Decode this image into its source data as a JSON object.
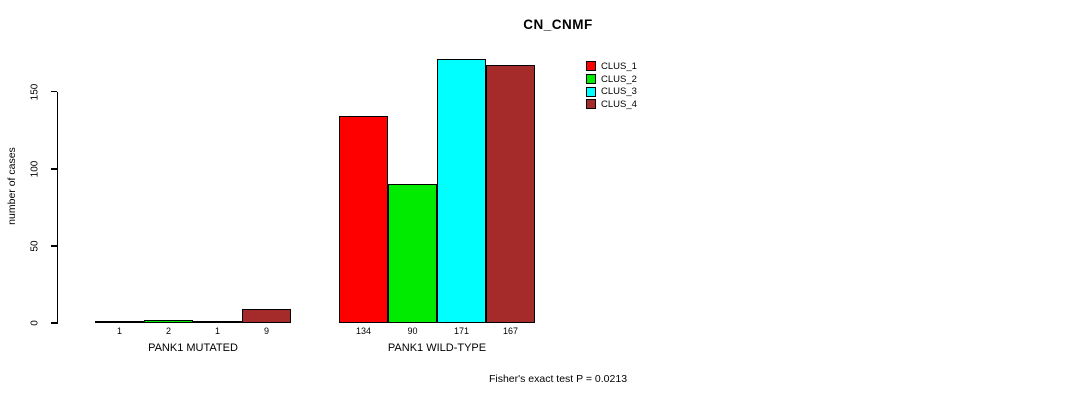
{
  "chart_data": {
    "type": "bar",
    "title": "CN_CNMF",
    "ylabel": "number of cases",
    "xlabel": "",
    "annotation": "Fisher's exact test P = 0.0213",
    "categories": [
      "PANK1 MUTATED",
      "PANK1 WILD-TYPE"
    ],
    "series": [
      {
        "name": "CLUS_1",
        "color": "#FF0000",
        "values": [
          1,
          134
        ]
      },
      {
        "name": "CLUS_2",
        "color": "#00EB00",
        "values": [
          2,
          90
        ]
      },
      {
        "name": "CLUS_3",
        "color": "#00FFFF",
        "values": [
          1,
          171
        ]
      },
      {
        "name": "CLUS_4",
        "color": "#A52A2A",
        "values": [
          9,
          167
        ]
      }
    ],
    "yticks": [
      0,
      50,
      100,
      150
    ],
    "ylim": [
      0,
      175
    ],
    "bar_value_labels": true,
    "legend_position": "top-right",
    "grid": false,
    "axis_color": "#000000",
    "bar_border_color": "#000000"
  }
}
